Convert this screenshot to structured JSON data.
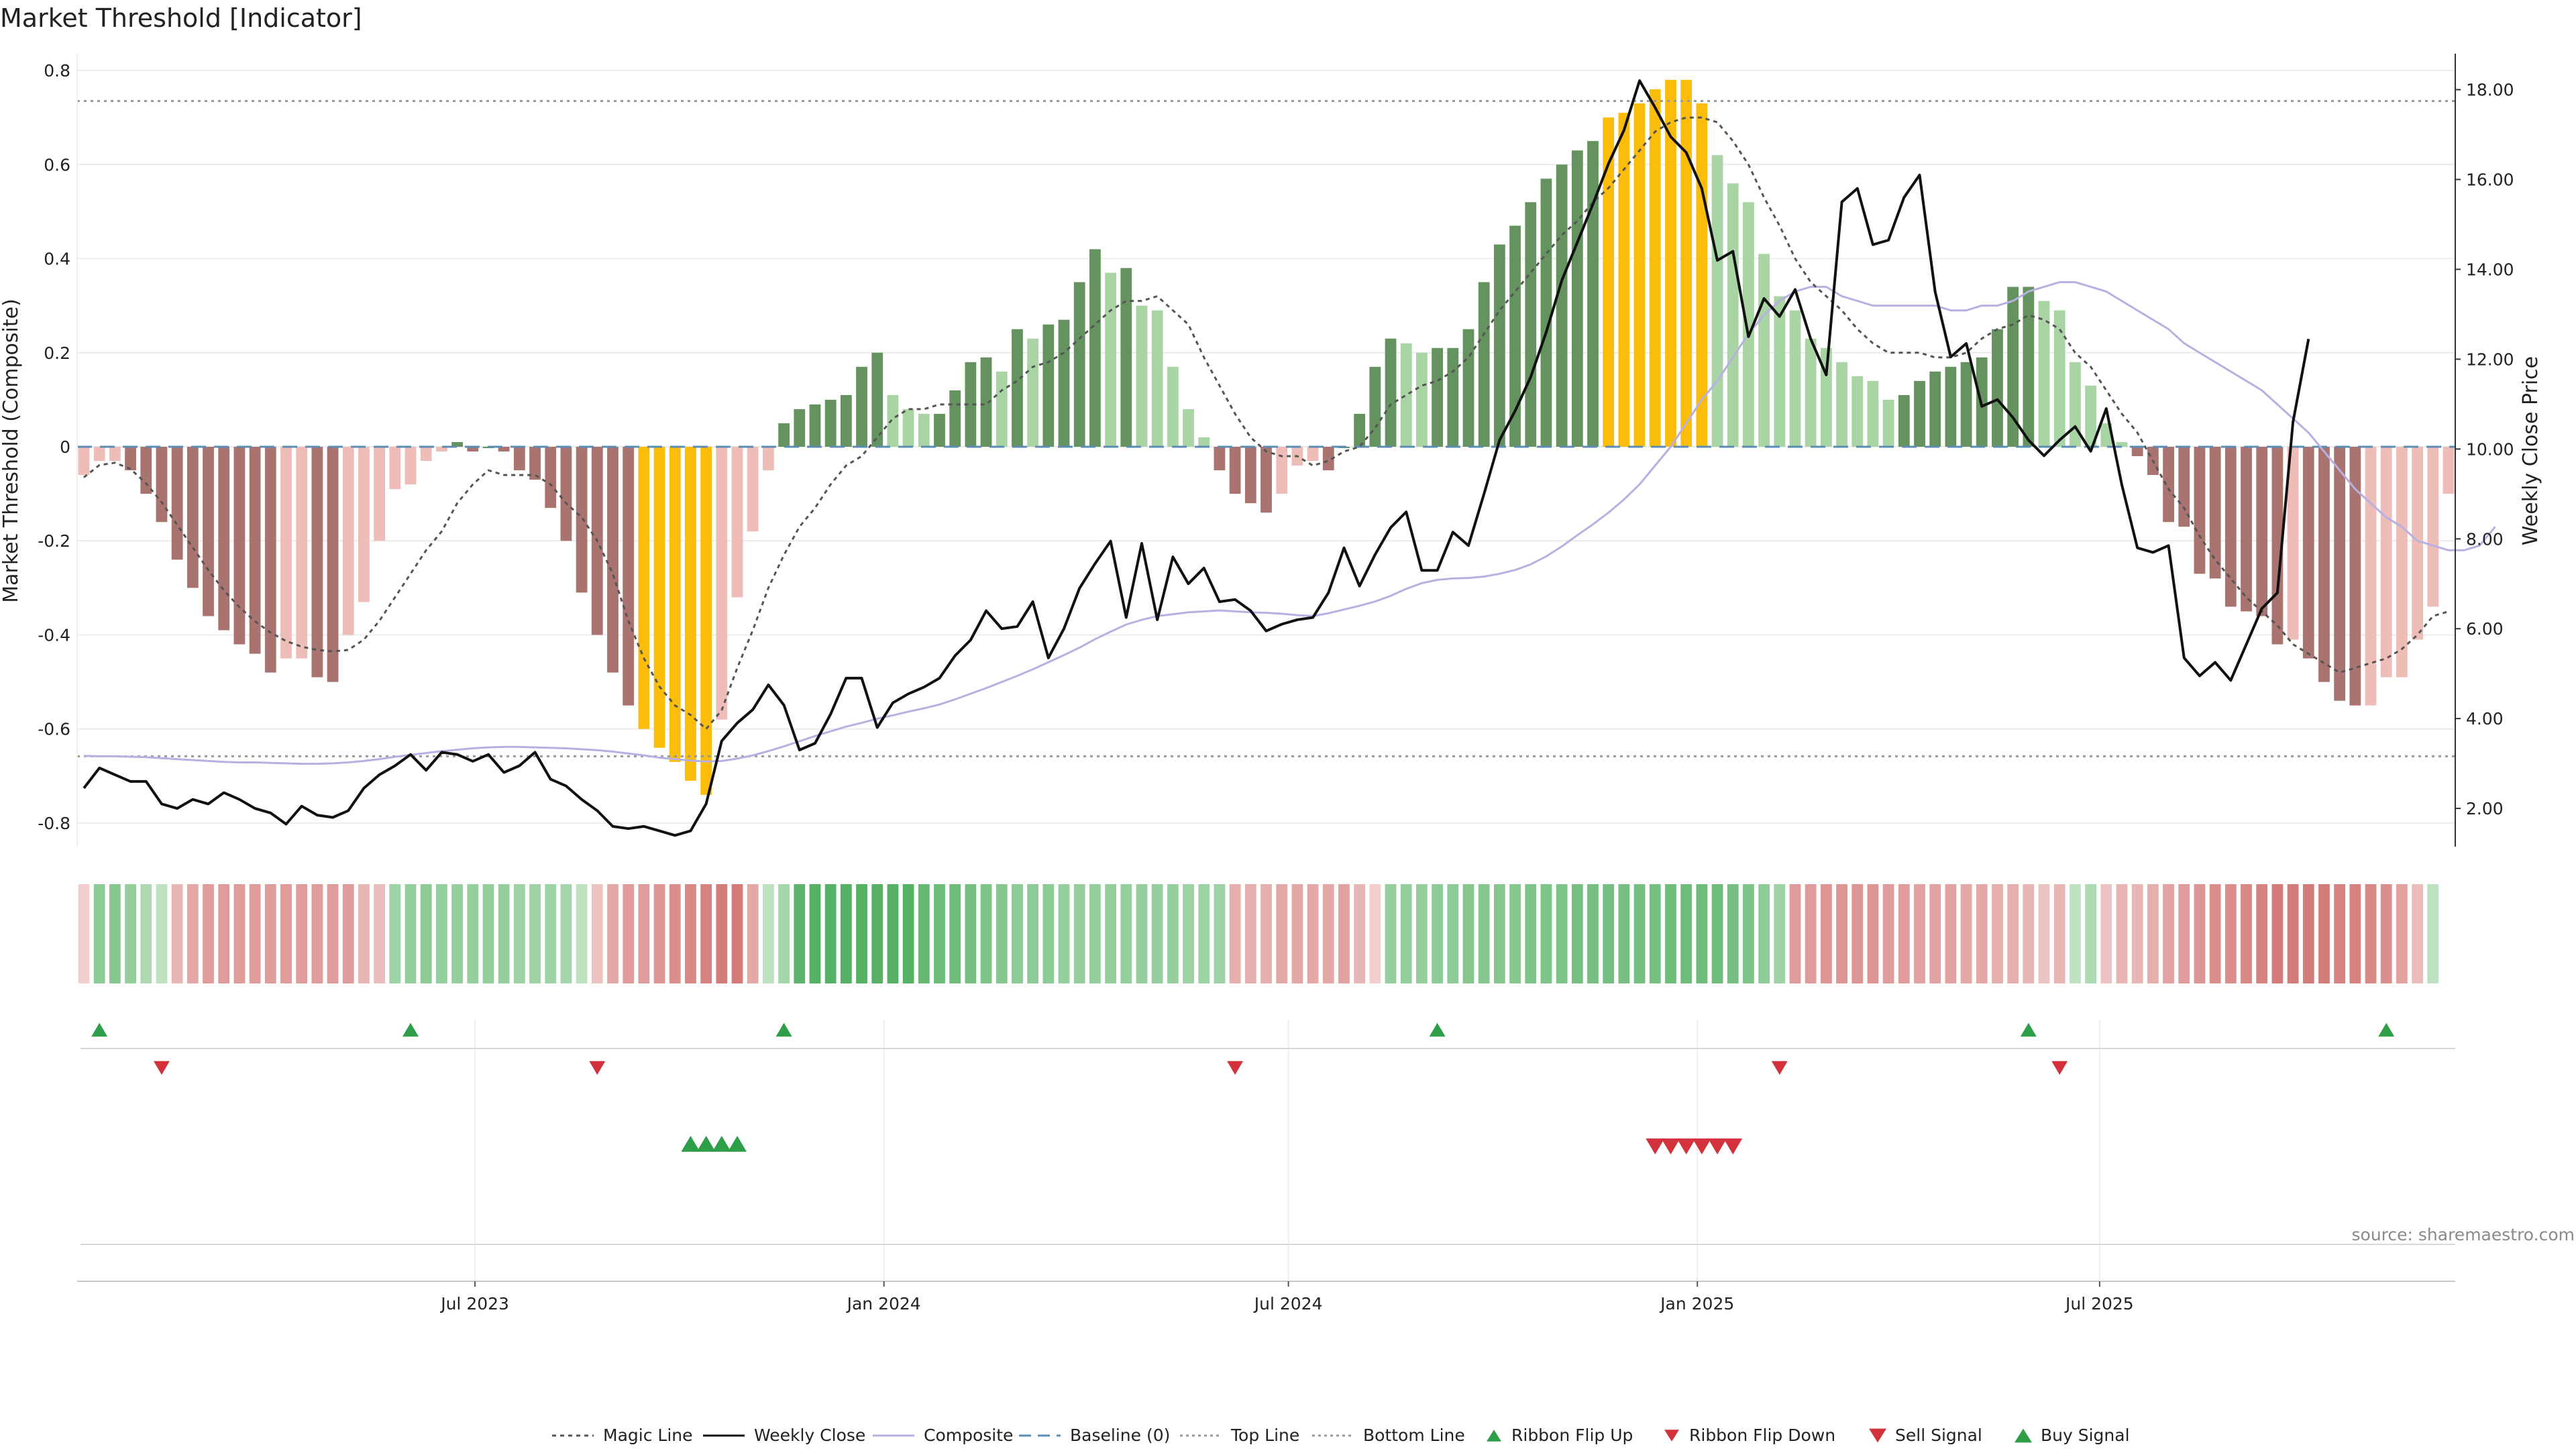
{
  "page": {
    "title": "Market Threshold [Indicator]",
    "source_note": "source: sharemaestro.com"
  },
  "legend": [
    {
      "key": "magic",
      "label": "Magic Line"
    },
    {
      "key": "close",
      "label": "Weekly Close"
    },
    {
      "key": "composite",
      "label": "Composite"
    },
    {
      "key": "baseline",
      "label": "Baseline (0)"
    },
    {
      "key": "top",
      "label": "Top Line"
    },
    {
      "key": "bottom",
      "label": "Bottom Line"
    },
    {
      "key": "ribbon_up",
      "label": "Ribbon Flip Up"
    },
    {
      "key": "ribbon_down",
      "label": "Ribbon Flip Down"
    },
    {
      "key": "sell",
      "label": "Sell Signal"
    },
    {
      "key": "buy",
      "label": "Buy Signal"
    }
  ],
  "colors": {
    "dark_green": "#64935f",
    "light_green": "#a9d4a4",
    "dark_red": "#a97370",
    "light_red": "#efbdb8",
    "extreme": "#fbbd09",
    "close": "#111111",
    "composite": "#b9b0e2",
    "magic": "#555555",
    "baseline": "#5b8db3",
    "threshold": "#999999",
    "marker_green": "#2e9e48",
    "marker_red": "#d3323d"
  },
  "chart_data": {
    "type": "bar",
    "title": "Market Threshold [Indicator]",
    "x_start_date": "2023-01-06",
    "x_interval_days": 7,
    "x_ticks": [
      "Jul 2023",
      "Jan 2024",
      "Jul 2024",
      "Jan 2025",
      "Jul 2025"
    ],
    "x_tick_dates": [
      "2023-07-01",
      "2024-01-01",
      "2024-07-01",
      "2025-01-01",
      "2025-07-01"
    ],
    "x_range": [
      "2023-01-06",
      "2025-10-31"
    ],
    "y_left": {
      "label": "Market Threshold (Composite)",
      "range": [
        -0.85,
        0.85
      ],
      "ticks": [
        -0.8,
        -0.6,
        -0.4,
        -0.2,
        0,
        0.2,
        0.4,
        0.6,
        0.8
      ]
    },
    "y_right": {
      "label": "Weekly Close Price",
      "range": [
        1.15,
        18.95
      ],
      "ticks": [
        "2.00",
        "4.00",
        "6.00",
        "8.00",
        "10.00",
        "12.00",
        "14.00",
        "16.00",
        "18.00"
      ]
    },
    "grid": true,
    "legend_position": "bottom-center",
    "top_line": 0.735,
    "bottom_line": -0.658,
    "composite_bars": [
      -0.06,
      -0.03,
      -0.03,
      -0.05,
      -0.1,
      -0.16,
      -0.24,
      -0.3,
      -0.36,
      -0.39,
      -0.42,
      -0.44,
      -0.48,
      -0.45,
      -0.45,
      -0.49,
      -0.5,
      -0.4,
      -0.33,
      -0.2,
      -0.09,
      -0.08,
      -0.03,
      -0.01,
      0.01,
      -0.01,
      0,
      -0.01,
      -0.05,
      -0.07,
      -0.13,
      -0.2,
      -0.31,
      -0.4,
      -0.48,
      -0.55,
      -0.6,
      -0.64,
      -0.67,
      -0.71,
      -0.74,
      -0.58,
      -0.32,
      -0.18,
      -0.05,
      0.05,
      0.08,
      0.09,
      0.1,
      0.11,
      0.17,
      0.2,
      0.11,
      0.08,
      0.07,
      0.07,
      0.12,
      0.18,
      0.19,
      0.16,
      0.25,
      0.23,
      0.26,
      0.27,
      0.35,
      0.42,
      0.37,
      0.38,
      0.3,
      0.29,
      0.17,
      0.08,
      0.02,
      -0.05,
      -0.1,
      -0.12,
      -0.14,
      -0.1,
      -0.04,
      -0.03,
      -0.05,
      0,
      0.07,
      0.17,
      0.23,
      0.22,
      0.2,
      0.21,
      0.21,
      0.25,
      0.35,
      0.43,
      0.47,
      0.52,
      0.57,
      0.6,
      0.63,
      0.65,
      0.7,
      0.71,
      0.73,
      0.76,
      0.78,
      0.78,
      0.73,
      0.62,
      0.56,
      0.52,
      0.41,
      0.32,
      0.29,
      0.23,
      0.21,
      0.18,
      0.15,
      0.14,
      0.1,
      0.11,
      0.14,
      0.16,
      0.17,
      0.18,
      0.19,
      0.25,
      0.34,
      0.34,
      0.31,
      0.29,
      0.18,
      0.13,
      0.05,
      0.01,
      -0.02,
      -0.06,
      -0.16,
      -0.17,
      -0.27,
      -0.28,
      -0.34,
      -0.35,
      -0.36,
      -0.42,
      -0.41,
      -0.45,
      -0.5,
      -0.54,
      -0.55,
      -0.55,
      -0.49,
      -0.49,
      -0.41,
      -0.34,
      -0.1
    ],
    "series": [
      {
        "name": "Magic Line",
        "values": [
          -0.065,
          -0.039,
          -0.034,
          -0.047,
          -0.078,
          -0.118,
          -0.166,
          -0.214,
          -0.262,
          -0.305,
          -0.341,
          -0.371,
          -0.395,
          -0.413,
          -0.425,
          -0.432,
          -0.435,
          -0.432,
          -0.41,
          -0.37,
          -0.32,
          -0.27,
          -0.22,
          -0.18,
          -0.12,
          -0.08,
          -0.05,
          -0.06,
          -0.06,
          -0.06,
          -0.08,
          -0.12,
          -0.15,
          -0.2,
          -0.27,
          -0.37,
          -0.45,
          -0.51,
          -0.55,
          -0.57,
          -0.6,
          -0.56,
          -0.47,
          -0.39,
          -0.3,
          -0.23,
          -0.17,
          -0.13,
          -0.08,
          -0.04,
          -0.02,
          0.02,
          0.06,
          0.08,
          0.08,
          0.09,
          0.09,
          0.09,
          0.09,
          0.12,
          0.14,
          0.17,
          0.18,
          0.2,
          0.23,
          0.26,
          0.29,
          0.31,
          0.31,
          0.32,
          0.29,
          0.26,
          0.19,
          0.13,
          0.07,
          0.02,
          -0.01,
          -0.02,
          -0.02,
          -0.04,
          -0.03,
          -0.01,
          0,
          0.04,
          0.09,
          0.11,
          0.13,
          0.14,
          0.16,
          0.19,
          0.24,
          0.29,
          0.33,
          0.37,
          0.41,
          0.45,
          0.48,
          0.52,
          0.55,
          0.59,
          0.63,
          0.67,
          0.69,
          0.7,
          0.7,
          0.69,
          0.65,
          0.6,
          0.53,
          0.47,
          0.4,
          0.35,
          0.32,
          0.29,
          0.25,
          0.22,
          0.2,
          0.2,
          0.2,
          0.19,
          0.19,
          0.2,
          0.23,
          0.25,
          0.26,
          0.28,
          0.27,
          0.25,
          0.2,
          0.17,
          0.12,
          0.07,
          0.03,
          -0.03,
          -0.09,
          -0.13,
          -0.19,
          -0.24,
          -0.28,
          -0.32,
          -0.35,
          -0.38,
          -0.42,
          -0.44,
          -0.46,
          -0.48,
          -0.47,
          -0.46,
          -0.45,
          -0.43,
          -0.4,
          -0.36,
          -0.35
        ]
      },
      {
        "name": "Composite",
        "values": [
          -0.657,
          -0.658,
          -0.658,
          -0.659,
          -0.66,
          -0.662,
          -0.664,
          -0.666,
          -0.668,
          -0.67,
          -0.671,
          -0.671,
          -0.672,
          -0.673,
          -0.674,
          -0.674,
          -0.673,
          -0.671,
          -0.668,
          -0.664,
          -0.659,
          -0.655,
          -0.651,
          -0.647,
          -0.644,
          -0.641,
          -0.639,
          -0.638,
          -0.638,
          -0.639,
          -0.64,
          -0.641,
          -0.643,
          -0.645,
          -0.648,
          -0.652,
          -0.656,
          -0.661,
          -0.664,
          -0.667,
          -0.669,
          -0.668,
          -0.663,
          -0.656,
          -0.647,
          -0.637,
          -0.626,
          -0.615,
          -0.605,
          -0.595,
          -0.587,
          -0.578,
          -0.571,
          -0.563,
          -0.556,
          -0.548,
          -0.537,
          -0.525,
          -0.513,
          -0.5,
          -0.487,
          -0.473,
          -0.458,
          -0.443,
          -0.427,
          -0.409,
          -0.393,
          -0.378,
          -0.368,
          -0.36,
          -0.356,
          -0.352,
          -0.35,
          -0.348,
          -0.35,
          -0.352,
          -0.353,
          -0.355,
          -0.358,
          -0.36,
          -0.354,
          -0.346,
          -0.338,
          -0.329,
          -0.317,
          -0.302,
          -0.29,
          -0.283,
          -0.28,
          -0.279,
          -0.276,
          -0.27,
          -0.262,
          -0.25,
          -0.233,
          -0.212,
          -0.188,
          -0.165,
          -0.14,
          -0.112,
          -0.08,
          -0.04,
          0,
          0.05,
          0.1,
          0.14,
          0.19,
          0.24,
          0.28,
          0.31,
          0.33,
          0.34,
          0.34,
          0.32,
          0.31,
          0.3,
          0.3,
          0.3,
          0.3,
          0.3,
          0.29,
          0.29,
          0.3,
          0.3,
          0.31,
          0.33,
          0.34,
          0.35,
          0.35,
          0.34,
          0.33,
          0.31,
          0.29,
          0.27,
          0.25,
          0.22,
          0.2,
          0.18,
          0.16,
          0.14,
          0.12,
          0.09,
          0.06,
          0.03,
          -0.01,
          -0.05,
          -0.09,
          -0.12,
          -0.15,
          -0.17,
          -0.2,
          -0.21,
          -0.22,
          -0.22,
          -0.21,
          -0.17
        ]
      },
      {
        "name": "Weekly Close",
        "values": [
          2.45,
          2.9,
          2.75,
          2.6,
          2.6,
          2.1,
          2,
          2.2,
          2.1,
          2.35,
          2.2,
          2,
          1.9,
          1.65,
          2.05,
          1.85,
          1.8,
          1.95,
          2.45,
          2.75,
          2.95,
          3.2,
          2.85,
          3.25,
          3.2,
          3.05,
          3.2,
          2.8,
          2.95,
          3.25,
          2.65,
          2.5,
          2.2,
          1.95,
          1.6,
          1.55,
          1.6,
          1.5,
          1.4,
          1.5,
          2.1,
          3.5,
          3.9,
          4.2,
          4.75,
          4.3,
          3.3,
          3.45,
          4.1,
          4.9,
          4.9,
          3.8,
          4.35,
          4.55,
          4.7,
          4.9,
          5.4,
          5.75,
          6.4,
          6,
          6.05,
          6.6,
          5.35,
          6,
          6.9,
          7.45,
          7.95,
          6.25,
          7.9,
          6.2,
          7.6,
          7,
          7.35,
          6.6,
          6.65,
          6.4,
          5.95,
          6.1,
          6.2,
          6.25,
          6.8,
          7.8,
          6.95,
          7.65,
          8.25,
          8.6,
          7.3,
          7.3,
          8.15,
          7.85,
          9,
          10.2,
          10.85,
          11.6,
          12.6,
          13.75,
          14.6,
          15.45,
          16.35,
          17.1,
          18.2,
          17.6,
          16.95,
          16.6,
          15.8,
          14.2,
          14.4,
          12.5,
          13.35,
          12.95,
          13.55,
          12.45,
          11.65,
          15.5,
          15.8,
          14.55,
          14.65,
          15.6,
          16.1,
          13.5,
          12.05,
          12.35,
          10.95,
          11.1,
          10.7,
          10.2,
          9.85,
          10.2,
          10.5,
          9.95,
          10.9,
          9.2,
          7.8,
          7.7,
          7.85,
          5.35,
          4.95,
          5.25,
          4.85,
          5.65,
          6.45,
          6.8,
          10.6,
          12.45
        ]
      }
    ],
    "ribbon_values": [
      -0.1,
      0.5,
      0.55,
      0.45,
      0.3,
      0.2,
      -0.3,
      -0.4,
      -0.5,
      -0.5,
      -0.5,
      -0.5,
      -0.5,
      -0.5,
      -0.5,
      -0.5,
      -0.5,
      -0.5,
      -0.3,
      -0.25,
      0.4,
      0.45,
      0.5,
      0.45,
      0.45,
      0.45,
      0.45,
      0.45,
      0.4,
      0.4,
      0.4,
      0.35,
      0.2,
      -0.2,
      -0.4,
      -0.5,
      -0.5,
      -0.55,
      -0.6,
      -0.65,
      -0.7,
      -0.75,
      -0.75,
      -0.4,
      0.2,
      0.35,
      0.8,
      0.85,
      0.85,
      0.85,
      0.85,
      0.85,
      0.85,
      0.85,
      0.75,
      0.7,
      0.7,
      0.65,
      0.6,
      0.55,
      0.5,
      0.5,
      0.5,
      0.45,
      0.45,
      0.45,
      0.45,
      0.45,
      0.45,
      0.45,
      0.45,
      0.4,
      0.4,
      0.4,
      -0.35,
      -0.35,
      -0.35,
      -0.4,
      -0.4,
      -0.4,
      -0.4,
      -0.45,
      -0.3,
      -0.1,
      0.45,
      0.45,
      0.45,
      0.5,
      0.5,
      0.55,
      0.55,
      0.55,
      0.55,
      0.6,
      0.6,
      0.6,
      0.65,
      0.65,
      0.65,
      0.65,
      0.65,
      0.65,
      0.7,
      0.7,
      0.7,
      0.7,
      0.65,
      0.6,
      0.5,
      0.4,
      -0.5,
      -0.5,
      -0.55,
      -0.55,
      -0.55,
      -0.55,
      -0.5,
      -0.5,
      -0.45,
      -0.45,
      -0.45,
      -0.4,
      -0.4,
      -0.35,
      -0.35,
      -0.3,
      -0.2,
      -0.3,
      0.2,
      0.3,
      -0.2,
      -0.3,
      -0.3,
      -0.35,
      -0.45,
      -0.5,
      -0.55,
      -0.6,
      -0.6,
      -0.65,
      -0.7,
      -0.75,
      -0.75,
      -0.75,
      -0.75,
      -0.7,
      -0.7,
      -0.65,
      -0.6,
      -0.45,
      -0.25,
      0.2
    ],
    "ribbon_flip_up": [
      1,
      21,
      45,
      87,
      125,
      148
    ],
    "ribbon_flip_down": [
      5,
      33,
      74,
      109,
      127
    ],
    "buy_signals": [
      39,
      40,
      41,
      42
    ],
    "sell_signals": [
      101,
      102,
      103,
      104,
      105,
      106
    ]
  }
}
